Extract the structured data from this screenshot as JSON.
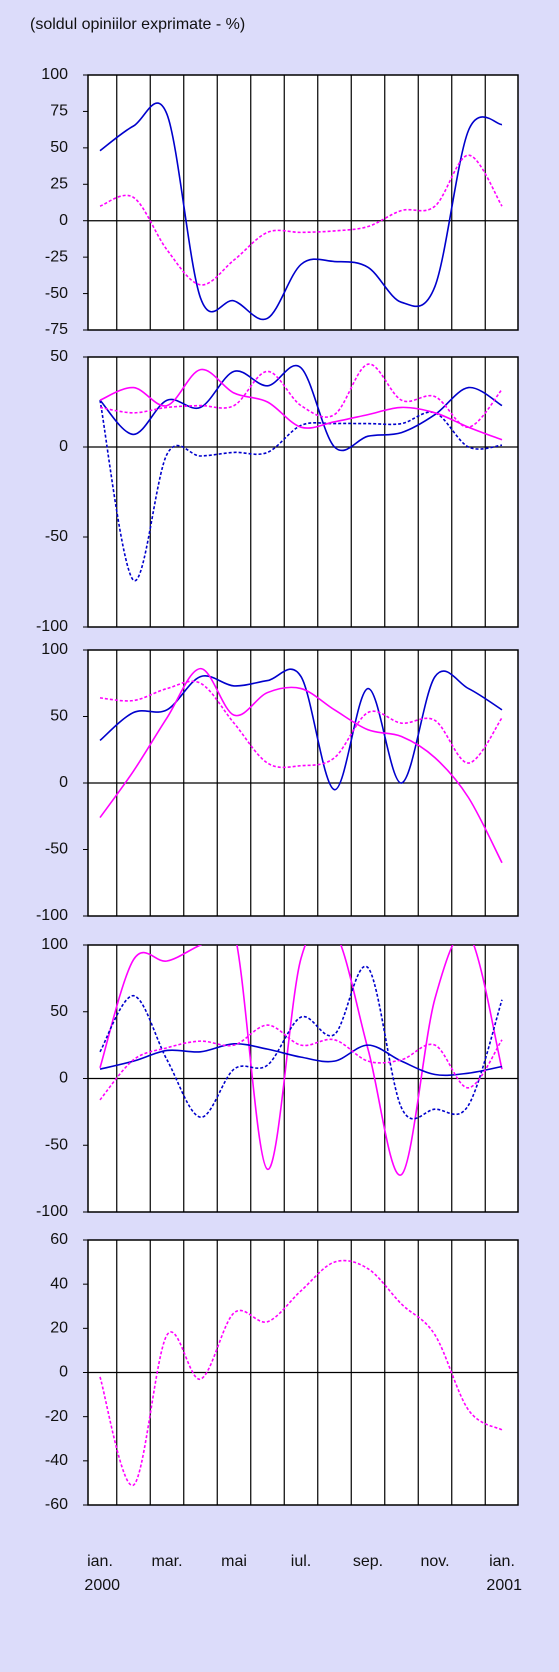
{
  "chart_data": [
    {
      "type": "line",
      "title": "(soldul opiniilor exprimate - %)",
      "ylim": [
        -75,
        100
      ],
      "yticks": [
        -75,
        -50,
        -25,
        0,
        25,
        50,
        75,
        100
      ],
      "series": [
        {
          "color": "#0000cc",
          "dashed": false,
          "values": [
            48,
            65,
            73,
            -53,
            -55,
            -67,
            -30,
            -28,
            -32,
            -56,
            -45,
            62,
            66
          ]
        },
        {
          "color": "#ff00ff",
          "dashed": true,
          "values": [
            10,
            16,
            -20,
            -44,
            -27,
            -8,
            -8,
            -7,
            -4,
            7,
            10,
            45,
            10
          ]
        }
      ]
    },
    {
      "type": "line",
      "ylim": [
        -100,
        50
      ],
      "yticks": [
        -100,
        -50,
        0,
        50
      ],
      "series": [
        {
          "color": "#0000cc",
          "dashed": false,
          "values": [
            26,
            7,
            26,
            22,
            42,
            34,
            44,
            0,
            6,
            8,
            18,
            33,
            23
          ]
        },
        {
          "color": "#0000cc",
          "dashed": true,
          "values": [
            26,
            -74,
            -4,
            -5,
            -3,
            -3,
            12,
            13,
            13,
            13,
            19,
            0,
            1
          ]
        },
        {
          "color": "#ff00ff",
          "dashed": false,
          "values": [
            26,
            33,
            23,
            43,
            30,
            25,
            11,
            14,
            18,
            22,
            19,
            11,
            4
          ]
        },
        {
          "color": "#ff00ff",
          "dashed": true,
          "values": [
            22,
            19,
            22,
            23,
            23,
            42,
            23,
            18,
            46,
            26,
            28,
            11,
            32
          ]
        }
      ]
    },
    {
      "type": "line",
      "ylim": [
        -100,
        100
      ],
      "yticks": [
        -100,
        -50,
        0,
        50,
        100
      ],
      "series": [
        {
          "color": "#0000cc",
          "dashed": false,
          "values": [
            32,
            53,
            55,
            80,
            73,
            77,
            80,
            -5,
            71,
            0,
            80,
            71,
            55
          ]
        },
        {
          "color": "#ff00ff",
          "dashed": false,
          "values": [
            -26,
            9,
            49,
            86,
            51,
            68,
            71,
            55,
            40,
            35,
            19,
            -11,
            -60
          ]
        },
        {
          "color": "#ff00ff",
          "dashed": true,
          "values": [
            64,
            62,
            71,
            75,
            45,
            15,
            13,
            19,
            53,
            45,
            47,
            15,
            49
          ]
        }
      ]
    },
    {
      "type": "line",
      "ylim": [
        -100,
        100
      ],
      "yticks": [
        -100,
        -50,
        0,
        50,
        100
      ],
      "series": [
        {
          "color": "#ff00ff",
          "dashed": false,
          "values": [
            8,
            89,
            88,
            100,
            110,
            -68,
            90,
            110,
            22,
            -72,
            60,
            108,
            7
          ]
        },
        {
          "color": "#0000cc",
          "dashed": true,
          "values": [
            20,
            62,
            14,
            -29,
            7,
            10,
            46,
            33,
            83,
            -22,
            -23,
            -20,
            59
          ]
        },
        {
          "color": "#0000cc",
          "dashed": false,
          "values": [
            7,
            13,
            21,
            20,
            26,
            22,
            16,
            13,
            25,
            13,
            3,
            4,
            9
          ]
        },
        {
          "color": "#ff00ff",
          "dashed": true,
          "values": [
            -16,
            14,
            23,
            28,
            25,
            40,
            25,
            29,
            13,
            14,
            25,
            -7,
            29
          ]
        }
      ]
    },
    {
      "type": "line",
      "ylim": [
        -60,
        60
      ],
      "yticks": [
        -60,
        -40,
        -20,
        0,
        20,
        40,
        60
      ],
      "categories": [
        "ian. 2000",
        null,
        "mar.",
        null,
        "mai",
        null,
        "iul.",
        null,
        "sep.",
        null,
        "nov.",
        null,
        "ian. 2001"
      ],
      "series": [
        {
          "color": "#ff00ff",
          "dashed": true,
          "values": [
            -2,
            -51,
            17,
            -3,
            27,
            23,
            37,
            50,
            47,
            31,
            17,
            -17,
            -26
          ]
        }
      ]
    }
  ]
}
